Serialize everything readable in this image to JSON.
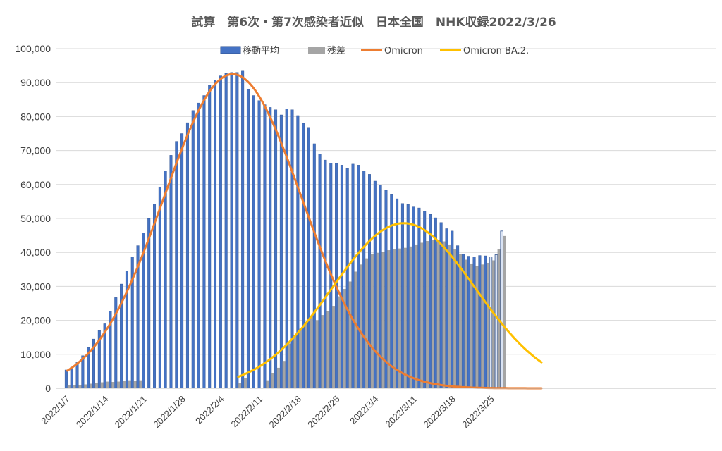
{
  "chart_data": {
    "type": "bar+line",
    "title": "試算　第6次・第7次感染者近似　日本全国　NHK収録2022/3/26",
    "ylim": [
      0,
      100000
    ],
    "y_ticks": [
      "0",
      "10,000",
      "20,000",
      "30,000",
      "40,000",
      "50,000",
      "60,000",
      "70,000",
      "80,000",
      "90,000",
      "100,000"
    ],
    "y_tick_values": [
      0,
      10000,
      20000,
      30000,
      40000,
      50000,
      60000,
      70000,
      80000,
      90000,
      100000
    ],
    "x_start": "2022/1/7",
    "x_ticks": [
      "2022/1/7",
      "2022/1/14",
      "2022/1/21",
      "2022/1/28",
      "2022/2/4",
      "2022/2/11",
      "2022/2/18",
      "2022/2/25",
      "2022/3/4",
      "2022/3/11",
      "2022/3/18",
      "2022/3/25"
    ],
    "grid": true,
    "legend_position": "top",
    "legend": [
      "移動平均",
      "残差",
      "Omicron",
      "Omicron BA.2."
    ],
    "colors": {
      "moving_average": "#4472c4",
      "moving_average_light": "#dae3f3",
      "residual": "#a5a5a5",
      "omicron": "#ed7d31",
      "omicron_ba2": "#ffc000"
    },
    "series": [
      {
        "name": "移動平均",
        "kind": "bar",
        "values": [
          5400,
          6200,
          7600,
          9600,
          12000,
          14500,
          17000,
          19000,
          22700,
          26700,
          30700,
          34500,
          38700,
          42000,
          45700,
          50000,
          54300,
          59300,
          64000,
          68600,
          72700,
          75000,
          78200,
          81800,
          84000,
          86200,
          89200,
          90700,
          92000,
          92700,
          93000,
          93000,
          93400,
          88000,
          86200,
          84700,
          83500,
          82700,
          82000,
          80500,
          82300,
          82000,
          80300,
          78000,
          76800,
          72000,
          69000,
          67200,
          66300,
          66200,
          65700,
          64700,
          66000,
          65700,
          64000,
          63000,
          61000,
          59800,
          58300,
          57000,
          55800,
          54400,
          54100,
          53400,
          53100,
          52100,
          51200,
          50200,
          48800,
          47000,
          46300,
          42000,
          39500,
          38900,
          38700,
          39100,
          39000,
          38700,
          39300,
          46300
        ]
      },
      {
        "name": "残差",
        "kind": "bar",
        "values": [
          900,
          900,
          1000,
          1100,
          1300,
          1500,
          1700,
          1900,
          1800,
          1900,
          2100,
          2300,
          2100,
          2300,
          0,
          0,
          0,
          0,
          0,
          0,
          0,
          0,
          0,
          0,
          0,
          0,
          0,
          0,
          0,
          0,
          0,
          1400,
          3000,
          0,
          0,
          0,
          2300,
          4500,
          6000,
          8000,
          13100,
          15500,
          17500,
          19500,
          21300,
          20000,
          21500,
          22600,
          24200,
          27000,
          29200,
          31400,
          34300,
          36400,
          38200,
          39600,
          39800,
          40000,
          40600,
          40900,
          41100,
          41300,
          41700,
          42300,
          42800,
          43300,
          43600,
          43700,
          43200,
          42300,
          40800,
          39400,
          37800,
          36700,
          35900,
          36400,
          36900,
          37600,
          41000,
          44800
        ]
      },
      {
        "name": "Omicron",
        "kind": "line",
        "peak_date": "2022/2/6",
        "peak": 92500,
        "sd_days": 12.5,
        "x_range": [
          "2022/1/7",
          "2022/4/3"
        ]
      },
      {
        "name": "Omicron BA.2.",
        "kind": "line",
        "peak_date": "2022/3/9",
        "peak": 48600,
        "sd_days": 13,
        "x_range": [
          "2022/2/7",
          "2022/4/3"
        ]
      }
    ]
  }
}
